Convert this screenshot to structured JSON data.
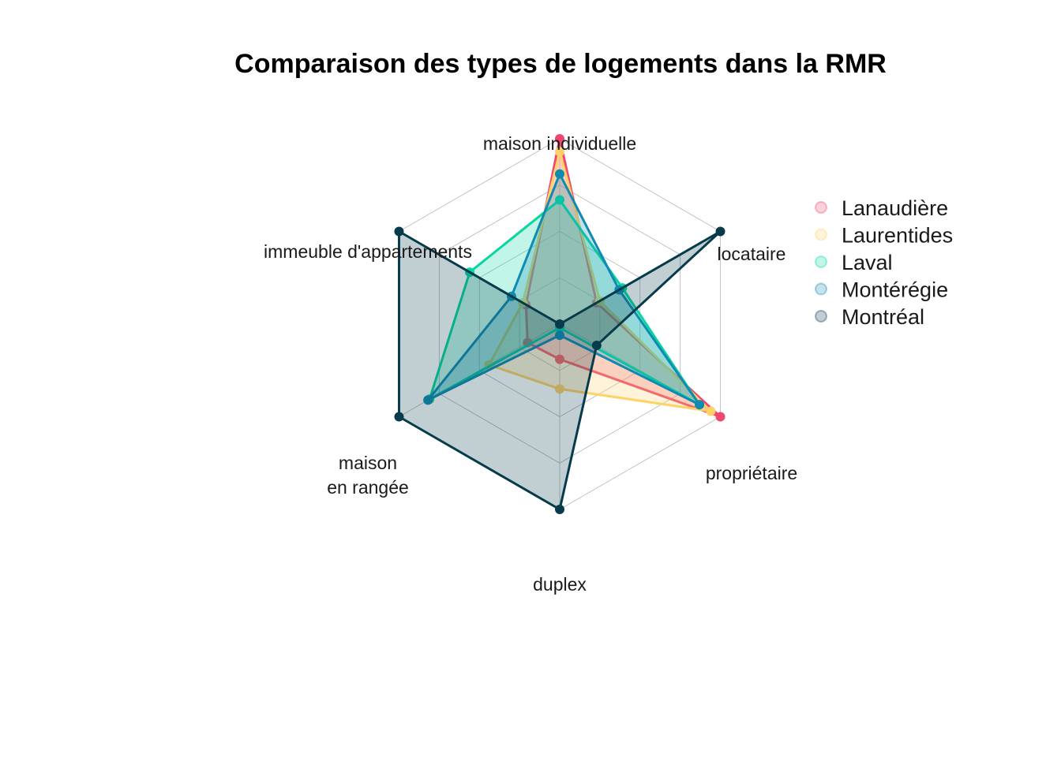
{
  "chart_data": {
    "type": "radar",
    "title": "Comparaison des types de logements dans la RMR",
    "axes": [
      {
        "key": "maison_individuelle",
        "lines": [
          "maison individuelle"
        ]
      },
      {
        "key": "locataire",
        "lines": [
          "locataire"
        ]
      },
      {
        "key": "proprietaire",
        "lines": [
          "propriétaire"
        ]
      },
      {
        "key": "duplex",
        "lines": [
          "duplex"
        ]
      },
      {
        "key": "maison_en_rangee",
        "lines": [
          "maison",
          "en rangée"
        ]
      },
      {
        "key": "immeuble_appartements",
        "lines": [
          "immeuble d'appartements"
        ]
      }
    ],
    "range": [
      0,
      1
    ],
    "grid_levels": 4,
    "grid": true,
    "legend_position": "right",
    "series": [
      {
        "name": "Lanaudière",
        "color": "#EF476F",
        "values": [
          1.0,
          0.23,
          1.0,
          0.19,
          0.2,
          0.21
        ]
      },
      {
        "name": "Laurentides",
        "color": "#FFD166",
        "values": [
          0.93,
          0.25,
          0.94,
          0.35,
          0.44,
          0.23
        ]
      },
      {
        "name": "Laval",
        "color": "#06D6A0",
        "values": [
          0.67,
          0.39,
          0.87,
          0.02,
          0.81,
          0.56
        ]
      },
      {
        "name": "Montérégie",
        "color": "#118AB2",
        "values": [
          0.81,
          0.37,
          0.87,
          0.06,
          0.82,
          0.3
        ]
      },
      {
        "name": "Montréal",
        "color": "#073B4C",
        "values": [
          0.0,
          1.0,
          0.23,
          1.0,
          1.0,
          1.0
        ]
      }
    ]
  }
}
